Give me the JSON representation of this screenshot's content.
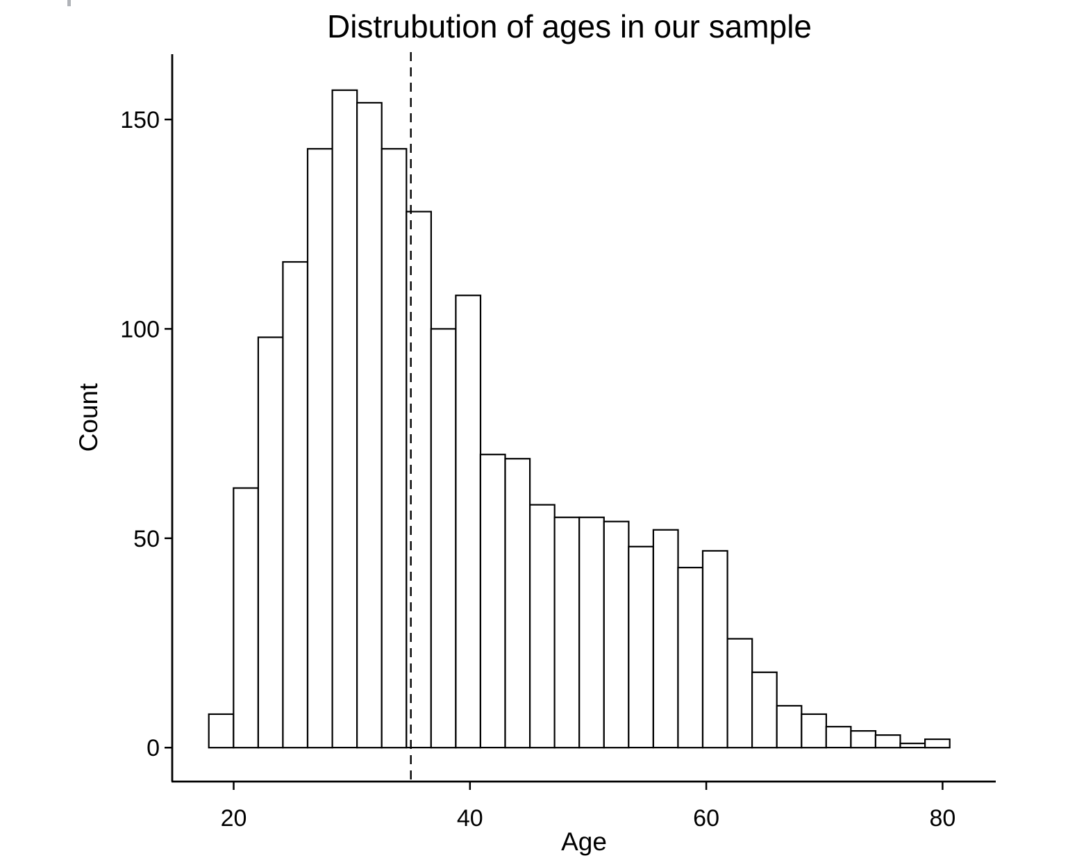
{
  "chart_data": {
    "type": "bar",
    "subtype": "histogram",
    "title": "Distrubution of ages in our sample",
    "xlabel": "Age",
    "ylabel": "Count",
    "x_ticks": [
      20,
      40,
      60,
      80
    ],
    "y_ticks": [
      0,
      50,
      100,
      150
    ],
    "x_range": [
      14.8,
      84.5
    ],
    "y_range": [
      -8.1,
      165.6
    ],
    "bins": {
      "start": 17.9,
      "width": 2.09
    },
    "counts": [
      8,
      62,
      98,
      116,
      143,
      157,
      154,
      143,
      128,
      100,
      108,
      70,
      69,
      58,
      55,
      55,
      54,
      48,
      52,
      43,
      47,
      26,
      18,
      10,
      8,
      5,
      4,
      3,
      1,
      2
    ],
    "reference_line": {
      "x": 35,
      "style": "dashed",
      "color": "#000000"
    },
    "bar_fill": "#ffffff",
    "bar_stroke": "#000000",
    "axis_color": "#000000",
    "background": "#ffffff",
    "grid": "off",
    "legend": "none"
  }
}
